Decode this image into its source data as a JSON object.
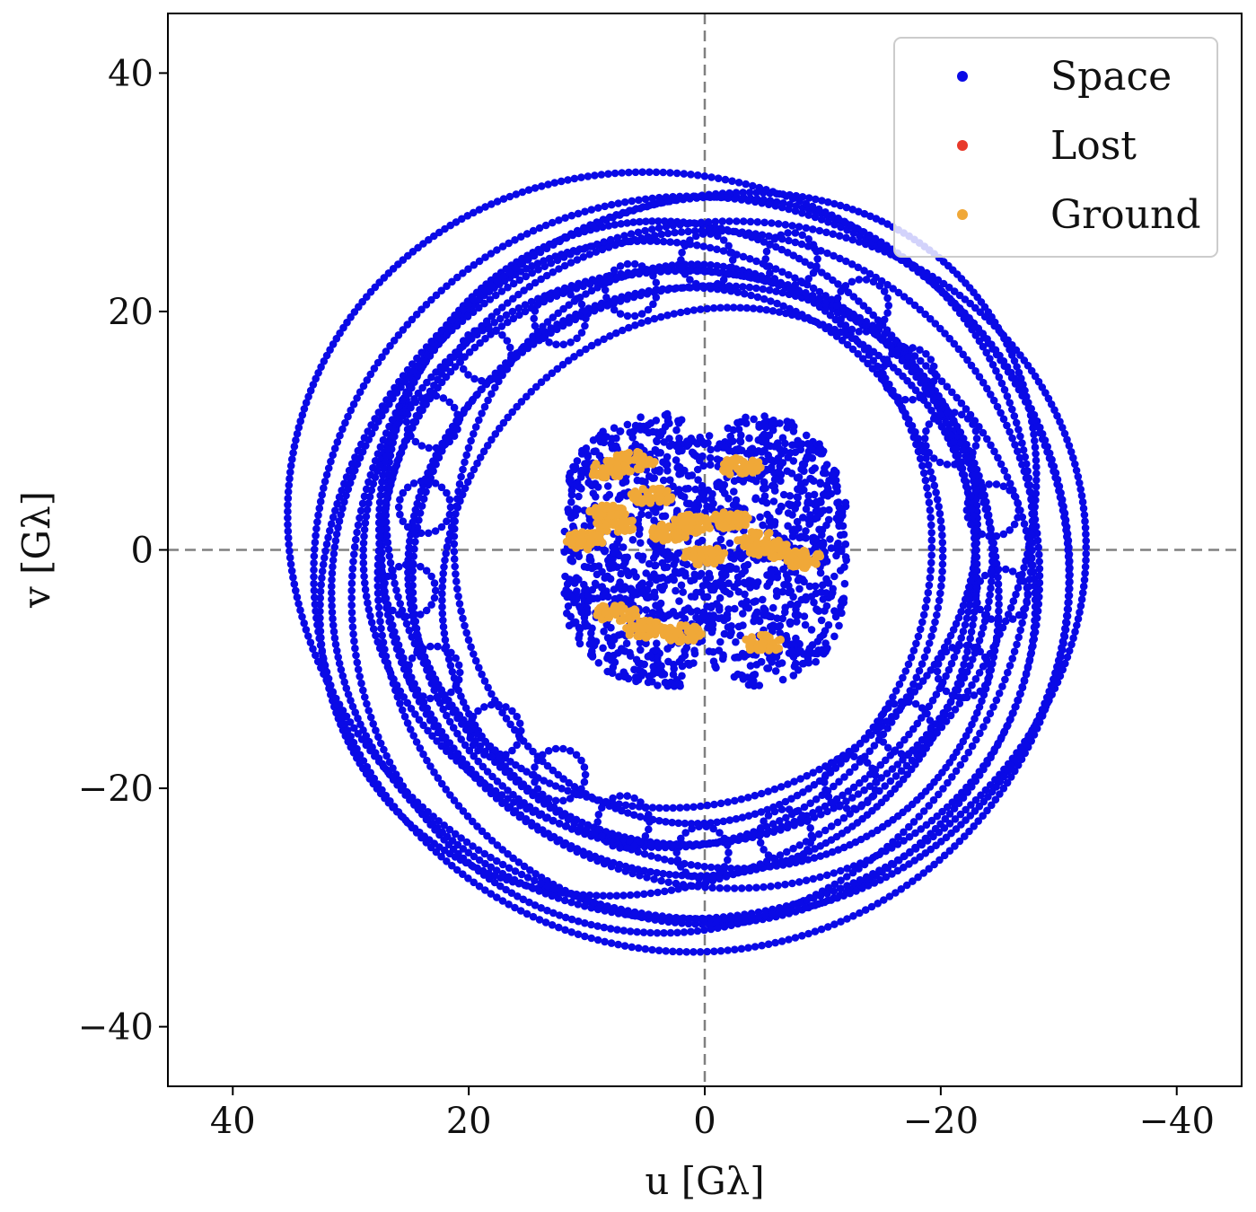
{
  "chart_data": {
    "type": "scatter",
    "title": "",
    "xlabel": "u [Gλ]",
    "ylabel": "v [Gλ]",
    "xlim": [
      45.5,
      -45.5
    ],
    "ylim": [
      -45,
      45
    ],
    "x_inverted": true,
    "xticks": [
      40,
      20,
      0,
      -20,
      -40
    ],
    "yticks": [
      40,
      20,
      0,
      -20,
      -40
    ],
    "xtick_labels": [
      "40",
      "20",
      "0",
      "−20",
      "−40"
    ],
    "ytick_labels": [
      "40",
      "20",
      "0",
      "−20",
      "−40"
    ],
    "reference_lines": [
      "u = 0 (dashed)",
      "v = 0 (dashed)"
    ],
    "legend_position": "top-right",
    "series": [
      {
        "name": "Space",
        "color": "#0a0ae6",
        "structure": {
          "outer_tracks": {
            "center": [
              1,
              -1
            ],
            "radius_range": [
              23,
              35
            ],
            "track_count": 14
          },
          "loops": {
            "count": 22,
            "radius_center": 24,
            "loop_radius": 2.2
          },
          "inner_cluster": {
            "u_range": [
              -12,
              12
            ],
            "v_range": [
              -11.5,
              11.5
            ]
          }
        }
      },
      {
        "name": "Lost",
        "color": "#e8392a",
        "points": []
      },
      {
        "name": "Ground",
        "color": "#f0a838",
        "clusters": [
          {
            "u": 6.0,
            "v": 7.5
          },
          {
            "u": 8.0,
            "v": 6.7
          },
          {
            "u": -3.0,
            "v": 7.0
          },
          {
            "u": 10.0,
            "v": 0.8
          },
          {
            "u": 8.2,
            "v": 3.0
          },
          {
            "u": 7.5,
            "v": 2.2
          },
          {
            "u": 3.0,
            "v": 1.5
          },
          {
            "u": 1.0,
            "v": 2.2
          },
          {
            "u": -4.5,
            "v": 0.8
          },
          {
            "u": -5.5,
            "v": 0.0
          },
          {
            "u": -8.3,
            "v": -0.8
          },
          {
            "u": 5.0,
            "v": -6.7
          },
          {
            "u": 2.0,
            "v": -7.0
          },
          {
            "u": -5.0,
            "v": -7.8
          },
          {
            "u": 7.5,
            "v": -5.3
          },
          {
            "u": 0.0,
            "v": -0.5
          },
          {
            "u": 4.5,
            "v": 4.5
          },
          {
            "u": -2.0,
            "v": 2.5
          }
        ]
      }
    ]
  }
}
